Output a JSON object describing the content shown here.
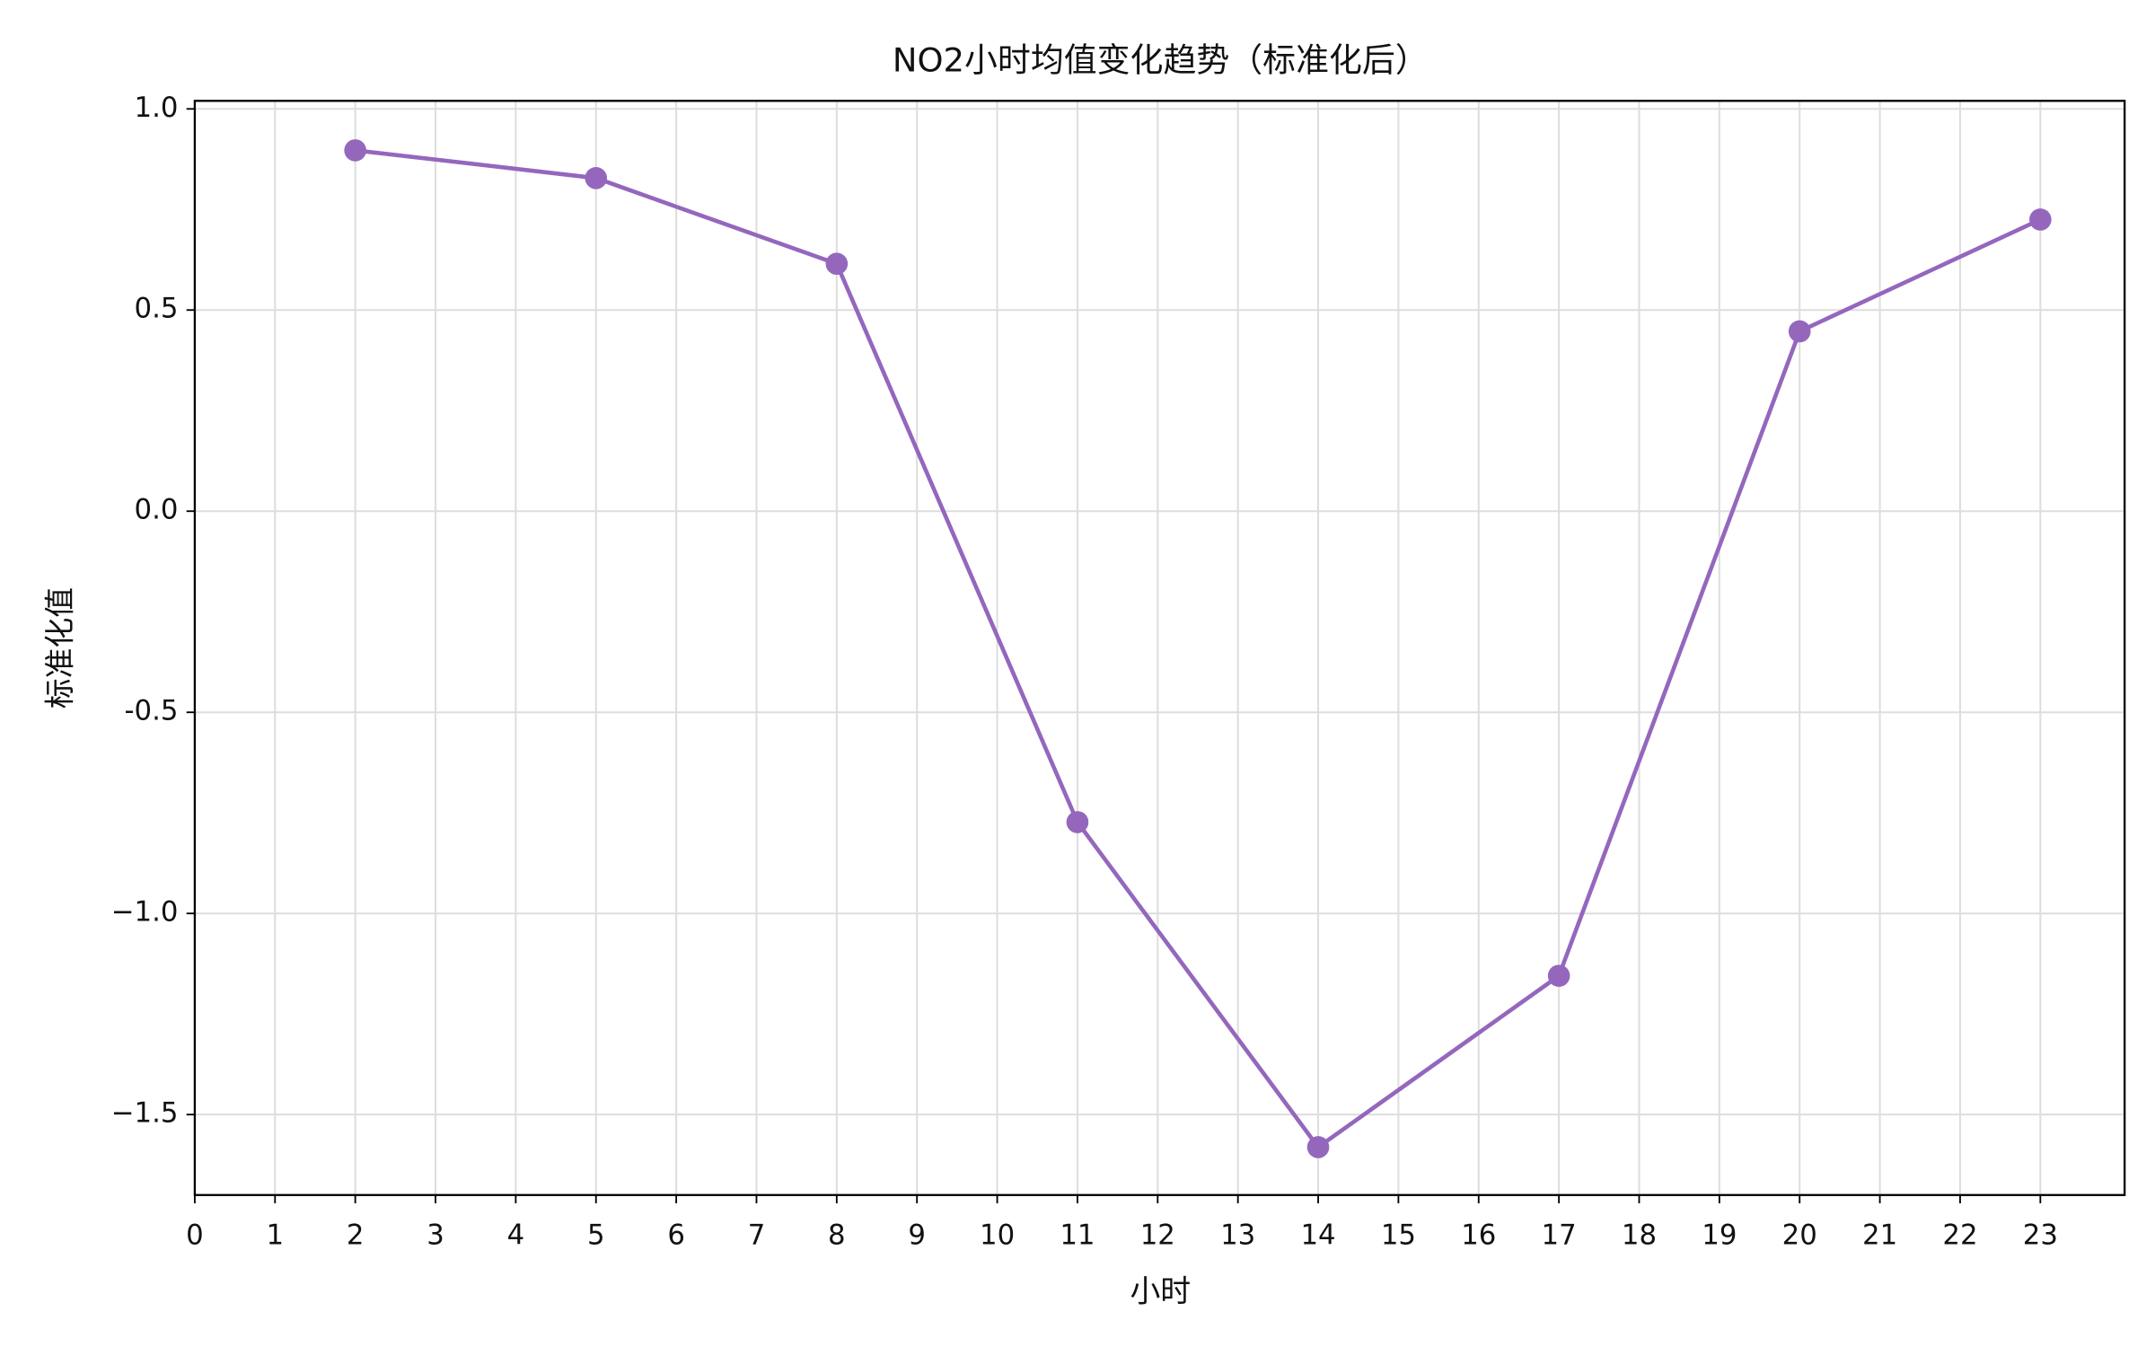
{
  "chart_data": {
    "type": "line",
    "title": "NO2小时均值变化趋势（标准化后）",
    "xlabel": "小时",
    "ylabel": "标准化值",
    "x": [
      2,
      5,
      8,
      11,
      14,
      17,
      20,
      23
    ],
    "series": [
      {
        "color": "#9467bd",
        "values": [
          0.897,
          0.828,
          0.615,
          -0.773,
          -1.581,
          -1.155,
          0.447,
          0.725
        ]
      }
    ],
    "xlim": [
      0,
      24.05
    ],
    "xticks": [
      0,
      1,
      2,
      3,
      4,
      5,
      6,
      7,
      8,
      9,
      10,
      11,
      12,
      13,
      14,
      15,
      16,
      17,
      18,
      19,
      20,
      21,
      22,
      23
    ],
    "ylim": [
      -1.7,
      1.02
    ],
    "yticks": [
      {
        "value": 1,
        "label": "1.0"
      },
      0.5,
      {
        "value": 0,
        "label": "0.0"
      },
      -0.5,
      {
        "value": -1,
        "label": "−1.0"
      },
      {
        "value": -1.5,
        "label": "−1.5"
      }
    ],
    "grid": true
  }
}
